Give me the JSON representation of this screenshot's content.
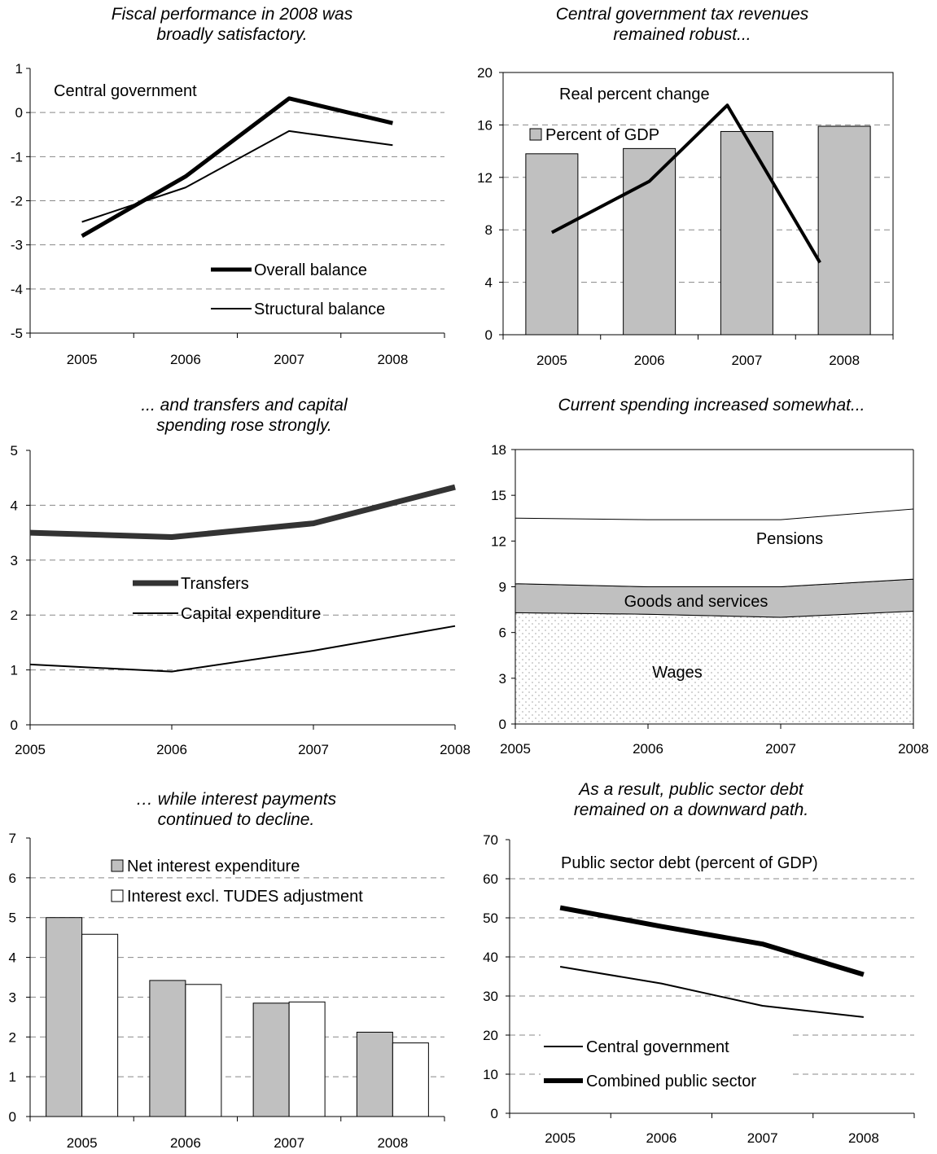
{
  "chart_data": [
    {
      "type": "line",
      "title": [
        "Fiscal performance in 2008 was",
        "broadly satisfactory."
      ],
      "annotation": "Central government",
      "categories": [
        "2005",
        "2006",
        "2007",
        "2008"
      ],
      "ylim": [
        -5,
        1
      ],
      "yticks": [
        -5,
        -4,
        -3,
        -2,
        -1,
        0,
        1
      ],
      "grid": true,
      "legend_position": "bottom-right",
      "series": [
        {
          "name": "Overall balance",
          "values": [
            -2.8,
            -1.45,
            0.32,
            -0.24
          ],
          "color": "#000000",
          "width": 5
        },
        {
          "name": "Structural balance",
          "values": [
            -2.48,
            -1.7,
            -0.42,
            -0.74
          ],
          "color": "#000000",
          "width": 2
        }
      ]
    },
    {
      "type": "bar+line",
      "title": [
        "Central government tax revenues",
        "remained robust..."
      ],
      "categories": [
        "2005",
        "2006",
        "2007",
        "2008"
      ],
      "ylim": [
        0,
        20
      ],
      "yticks": [
        0,
        4,
        8,
        12,
        16,
        20
      ],
      "grid": true,
      "bars": {
        "name": "Percent of GDP",
        "values": [
          13.8,
          14.2,
          15.5,
          15.9
        ],
        "color": "#c0c0c0"
      },
      "line": {
        "name": "Real percent change",
        "x": [
          0,
          1,
          1.8,
          2.75
        ],
        "values": [
          7.8,
          11.7,
          17.5,
          5.5
        ],
        "color": "#000000"
      }
    },
    {
      "type": "line",
      "title": [
        "... and transfers and capital",
        "spending rose strongly."
      ],
      "categories": [
        "2005",
        "2006",
        "2007",
        "2008"
      ],
      "ylim": [
        0,
        5
      ],
      "yticks": [
        0,
        1,
        2,
        3,
        4,
        5
      ],
      "grid": true,
      "legend_position": "center-left",
      "series": [
        {
          "name": "Transfers",
          "values": [
            3.5,
            3.42,
            3.67,
            4.33
          ],
          "color": "#333333",
          "width": 7
        },
        {
          "name": "Capital expenditure",
          "values": [
            1.1,
            0.97,
            1.35,
            1.8
          ],
          "color": "#000000",
          "width": 2
        }
      ]
    },
    {
      "type": "area",
      "title": [
        "Current spending increased somewhat..."
      ],
      "categories": [
        "2005",
        "2006",
        "2007",
        "2008"
      ],
      "ylim": [
        0,
        18
      ],
      "yticks": [
        0,
        3,
        6,
        9,
        12,
        15,
        18
      ],
      "grid": false,
      "series": [
        {
          "name": "Wages",
          "values": [
            7.3,
            7.2,
            7.0,
            7.4
          ],
          "color": "#f4f4f4"
        },
        {
          "name": "Goods and services",
          "values": [
            9.2,
            9.0,
            9.0,
            9.5
          ],
          "color": "#c0c0c0"
        },
        {
          "name": "Pensions",
          "values": [
            13.5,
            13.4,
            13.4,
            14.1
          ],
          "color": "#ffffff"
        }
      ]
    },
    {
      "type": "bar",
      "title": [
        "… while interest payments",
        "continued to decline."
      ],
      "categories": [
        "2005",
        "2006",
        "2007",
        "2008"
      ],
      "ylim": [
        0,
        7
      ],
      "yticks": [
        0,
        1,
        2,
        3,
        4,
        5,
        6,
        7
      ],
      "grid": true,
      "legend_position": "top-right",
      "series": [
        {
          "name": "Net interest expenditure",
          "values": [
            5.0,
            3.42,
            2.85,
            2.12
          ],
          "color": "#c0c0c0"
        },
        {
          "name": "Interest excl. TUDES adjustment",
          "values": [
            4.58,
            3.32,
            2.88,
            1.85
          ],
          "color": "#ffffff"
        }
      ]
    },
    {
      "type": "line",
      "title": [
        "As a result, public sector debt",
        "remained on a downward path."
      ],
      "annotation": "Public sector debt (percent of GDP)",
      "categories": [
        "2005",
        "2006",
        "2007",
        "2008"
      ],
      "ylim": [
        0,
        70
      ],
      "yticks": [
        0,
        10,
        20,
        30,
        40,
        50,
        60,
        70
      ],
      "grid": true,
      "legend_position": "bottom-left",
      "series": [
        {
          "name": "Central government",
          "values": [
            37.5,
            33.2,
            27.5,
            24.6
          ],
          "color": "#000000",
          "width": 2
        },
        {
          "name": "Combined public sector",
          "values": [
            52.6,
            47.8,
            43.3,
            35.5
          ],
          "color": "#000000",
          "width": 6
        }
      ]
    }
  ]
}
